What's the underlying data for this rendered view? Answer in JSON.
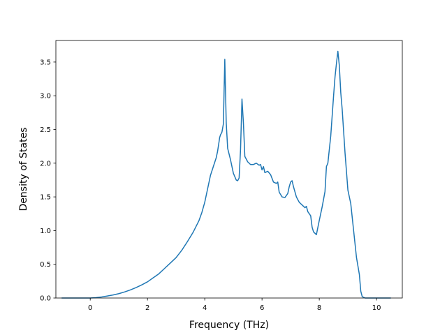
{
  "chart_data": {
    "type": "line",
    "xlabel": "Frequency (THz)",
    "ylabel": "Density of States",
    "xlim": [
      -1.2,
      10.9
    ],
    "ylim": [
      0,
      3.82
    ],
    "xticks": [
      0,
      2,
      4,
      6,
      8,
      10
    ],
    "yticks": [
      0.0,
      0.5,
      1.0,
      1.5,
      2.0,
      2.5,
      3.0,
      3.5
    ],
    "xtick_labels": [
      "0",
      "2",
      "4",
      "6",
      "8",
      "10"
    ],
    "ytick_labels": [
      "0.0",
      "0.5",
      "1.0",
      "1.5",
      "2.0",
      "2.5",
      "3.0",
      "3.5"
    ],
    "grid": false,
    "line_color": "#1f77b4",
    "series": [
      {
        "x": [
          -1.0,
          -0.5,
          0.0,
          0.2,
          0.4,
          0.6,
          0.8,
          1.0,
          1.2,
          1.4,
          1.6,
          1.8,
          2.0,
          2.2,
          2.4,
          2.6,
          2.8,
          3.0,
          3.2,
          3.4,
          3.6,
          3.8,
          3.9,
          4.0,
          4.1,
          4.2,
          4.3,
          4.4,
          4.45,
          4.5,
          4.52,
          4.55,
          4.6,
          4.65,
          4.7,
          4.75,
          4.8,
          4.9,
          5.0,
          5.1,
          5.15,
          5.2,
          5.25,
          5.3,
          5.35,
          5.4,
          5.5,
          5.6,
          5.7,
          5.8,
          5.9,
          5.95,
          6.0,
          6.05,
          6.1,
          6.2,
          6.3,
          6.4,
          6.5,
          6.55,
          6.6,
          6.7,
          6.8,
          6.9,
          6.95,
          7.0,
          7.05,
          7.1,
          7.2,
          7.3,
          7.4,
          7.5,
          7.55,
          7.6,
          7.7,
          7.75,
          7.8,
          7.9,
          8.0,
          8.1,
          8.2,
          8.25,
          8.3,
          8.4,
          8.5,
          8.55,
          8.6,
          8.65,
          8.7,
          8.75,
          8.8,
          8.9,
          9.0,
          9.1,
          9.2,
          9.3,
          9.4,
          9.45,
          9.5,
          9.6,
          10.0,
          10.5
        ],
        "y": [
          0.0,
          0.0,
          0.0,
          0.005,
          0.015,
          0.03,
          0.045,
          0.065,
          0.09,
          0.12,
          0.155,
          0.195,
          0.24,
          0.3,
          0.36,
          0.44,
          0.52,
          0.6,
          0.71,
          0.84,
          0.98,
          1.15,
          1.27,
          1.42,
          1.62,
          1.82,
          1.95,
          2.08,
          2.18,
          2.32,
          2.38,
          2.42,
          2.46,
          2.58,
          3.54,
          2.6,
          2.22,
          2.05,
          1.85,
          1.75,
          1.74,
          1.78,
          2.2,
          2.95,
          2.6,
          2.1,
          2.02,
          1.98,
          1.98,
          2.0,
          1.97,
          1.98,
          1.9,
          1.95,
          1.86,
          1.88,
          1.83,
          1.72,
          1.7,
          1.72,
          1.57,
          1.5,
          1.49,
          1.55,
          1.65,
          1.72,
          1.74,
          1.65,
          1.5,
          1.42,
          1.38,
          1.34,
          1.36,
          1.28,
          1.22,
          1.05,
          0.98,
          0.94,
          1.15,
          1.35,
          1.58,
          1.95,
          2.0,
          2.4,
          3.0,
          3.28,
          3.48,
          3.66,
          3.45,
          3.05,
          2.8,
          2.15,
          1.6,
          1.4,
          1.0,
          0.6,
          0.35,
          0.1,
          0.02,
          0.0,
          0.0,
          0.0
        ]
      }
    ]
  }
}
